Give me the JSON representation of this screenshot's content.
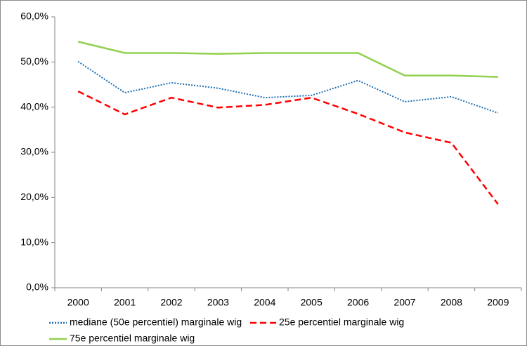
{
  "chart_data": {
    "type": "line",
    "categories": [
      "2000",
      "2001",
      "2002",
      "2003",
      "2004",
      "2005",
      "2006",
      "2007",
      "2008",
      "2009"
    ],
    "series": [
      {
        "name": "mediane (50e percentiel) marginale wig",
        "color": "#1f6fb5",
        "style": "dotted",
        "values": [
          50.1,
          43.2,
          45.4,
          44.2,
          42.1,
          42.6,
          45.9,
          41.2,
          42.3,
          38.7
        ]
      },
      {
        "name": "25e percentiel marginale wig",
        "color": "#ff0000",
        "style": "dashed",
        "values": [
          43.5,
          38.4,
          42.1,
          39.9,
          40.5,
          42.1,
          38.5,
          34.4,
          32.1,
          18.5
        ]
      },
      {
        "name": "75e percentiel marginale wig",
        "color": "#92d050",
        "style": "solid",
        "values": [
          54.5,
          52.0,
          52.0,
          51.8,
          52.0,
          52.0,
          52.0,
          47.0,
          47.0,
          46.7
        ]
      }
    ],
    "ylim": [
      0,
      60
    ],
    "yticks": [
      {
        "value": 0,
        "label": "0,0%"
      },
      {
        "value": 10,
        "label": "10,0%"
      },
      {
        "value": 20,
        "label": "20,0%"
      },
      {
        "value": 30,
        "label": "30,0%"
      },
      {
        "value": 40,
        "label": "40,0%"
      },
      {
        "value": 50,
        "label": "50,0%"
      },
      {
        "value": 60,
        "label": "60,0%"
      }
    ],
    "grid": false,
    "legend": "bottom"
  }
}
